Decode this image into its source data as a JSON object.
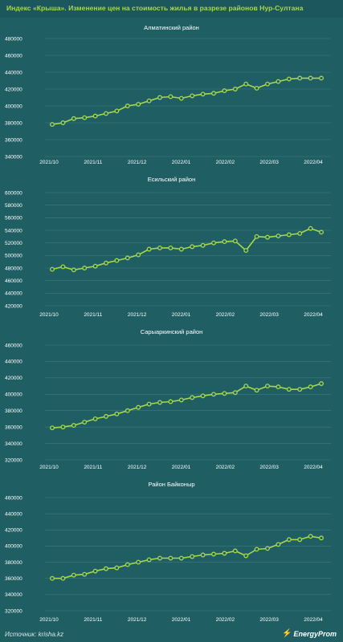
{
  "header": {
    "title": "Индекс «Крыша». Изменение цен на стоимость жилья в разрезе районов Нур-Султана"
  },
  "footer": {
    "source": "Источник: krisha.kz",
    "brand": "EnergyProm",
    "brand_icon": "energyprom-logo-icon"
  },
  "colors": {
    "background": "#1f5f64",
    "line": "#a8d84a",
    "marker_fill": "#1f5f64",
    "grid": "#3f7a7e",
    "text": "#ffffff",
    "title_accent": "#a8d84a"
  },
  "chart_data": [
    {
      "type": "line",
      "title": "Алматинский район",
      "x_ticks": [
        "2021/10",
        "2021/11",
        "2021/12",
        "2022/01",
        "2022/02",
        "2022/03",
        "2022/04"
      ],
      "y_ticks": [
        340000,
        360000,
        380000,
        400000,
        420000,
        440000,
        460000,
        480000
      ],
      "ylim": [
        340000,
        480000
      ],
      "grid": true,
      "series": [
        {
          "values": [
            378000,
            380000,
            385000,
            386000,
            388000,
            391000,
            394000,
            400000,
            402000,
            406000,
            410000,
            411000,
            409000,
            412000,
            414000,
            415000,
            418000,
            420000,
            426000,
            421000,
            426000,
            429000,
            432000,
            433000,
            433000,
            433000
          ]
        }
      ]
    },
    {
      "type": "line",
      "title": "Есильский район",
      "x_ticks": [
        "2021/10",
        "2021/11",
        "2021/12",
        "2022/01",
        "2022/02",
        "2022/03",
        "2022/04"
      ],
      "y_ticks": [
        420000,
        440000,
        460000,
        480000,
        500000,
        520000,
        540000,
        560000,
        580000,
        600000
      ],
      "ylim": [
        420000,
        600000
      ],
      "grid": true,
      "series": [
        {
          "values": [
            478000,
            482000,
            477000,
            480000,
            483000,
            488000,
            492000,
            496000,
            501000,
            510000,
            512000,
            512000,
            510000,
            514000,
            516000,
            520000,
            522000,
            523000,
            508000,
            530000,
            529000,
            531000,
            533000,
            535000,
            543000,
            537000
          ]
        }
      ]
    },
    {
      "type": "line",
      "title": "Сарыаркинский район",
      "x_ticks": [
        "2021/10",
        "2021/11",
        "2021/12",
        "2022/01",
        "2022/02",
        "2022/03",
        "2022/04"
      ],
      "y_ticks": [
        320000,
        340000,
        360000,
        380000,
        400000,
        420000,
        440000,
        460000
      ],
      "ylim": [
        320000,
        460000
      ],
      "grid": true,
      "series": [
        {
          "values": [
            359000,
            360000,
            362000,
            366000,
            370000,
            373000,
            376000,
            380000,
            384000,
            388000,
            390000,
            391000,
            393000,
            396000,
            398000,
            400000,
            401000,
            402000,
            410000,
            405000,
            410000,
            409000,
            406000,
            406000,
            409000,
            413000
          ]
        }
      ]
    },
    {
      "type": "line",
      "title": "Район Байконыр",
      "x_ticks": [
        "2021/10",
        "2021/11",
        "2021/12",
        "2022/01",
        "2022/02",
        "2022/03",
        "2022/04"
      ],
      "y_ticks": [
        320000,
        340000,
        360000,
        380000,
        400000,
        420000,
        440000,
        460000
      ],
      "ylim": [
        320000,
        460000
      ],
      "grid": true,
      "series": [
        {
          "values": [
            360000,
            360000,
            364000,
            365000,
            369000,
            372000,
            373000,
            377000,
            380000,
            383000,
            385000,
            385000,
            385000,
            387000,
            389000,
            390000,
            391000,
            394000,
            388000,
            396000,
            397000,
            402000,
            408000,
            408000,
            412000,
            410000
          ]
        }
      ]
    }
  ]
}
